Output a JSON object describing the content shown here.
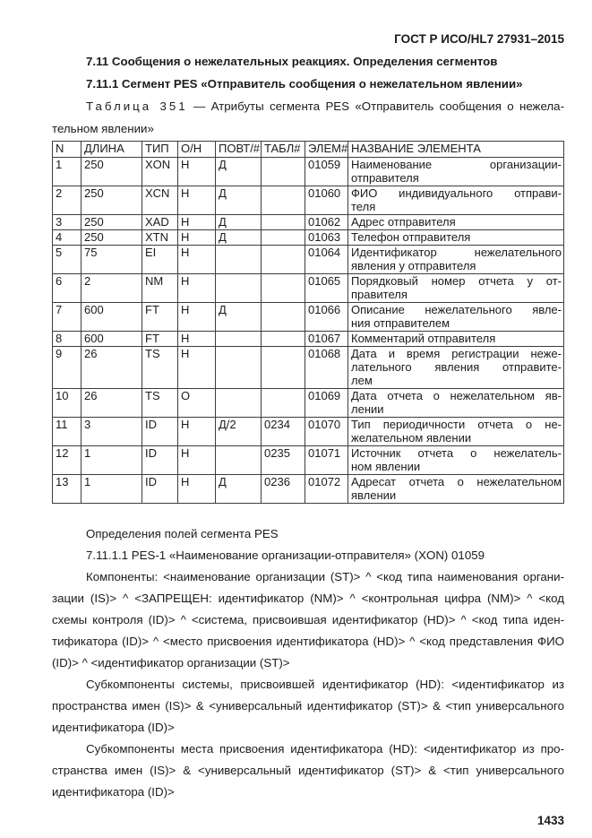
{
  "doc": {
    "header_ref": "ГОСТ Р ИСО/HL7 27931–2015",
    "page_number": "1433"
  },
  "headings": {
    "section": "7.11 Сообщения о нежелательных реакциях. Определения сегментов",
    "subsection": "7.11.1 Сегмент PES «Отправитель сообщения о нежелательном явлении»"
  },
  "table": {
    "caption_label": "Таблица 351",
    "caption_line1_rest": "— Атрибуты сегмента PES «Отправитель сообщения о нежела-",
    "caption_line2": "тельном явлении»",
    "columns": [
      "N",
      "ДЛИНА",
      "ТИП",
      "О/Н",
      "ПОВТ/#",
      "ТАБЛ#",
      "ЭЛЕМ#",
      "НАЗВАНИЕ ЭЛЕМЕНТА"
    ],
    "rows": [
      {
        "n": "1",
        "len": "250",
        "type": "XON",
        "opt": "Н",
        "rep": "Д",
        "tbl": "",
        "elem": "01059",
        "name_lines": [
          "Наименование организации-",
          "отправителя"
        ]
      },
      {
        "n": "2",
        "len": "250",
        "type": "XCN",
        "opt": "Н",
        "rep": "Д",
        "tbl": "",
        "elem": "01060",
        "name_lines": [
          "ФИО индивидуального отправи-",
          "теля"
        ]
      },
      {
        "n": "3",
        "len": "250",
        "type": "XAD",
        "opt": "Н",
        "rep": "Д",
        "tbl": "",
        "elem": "01062",
        "name_lines": [
          "Адрес отправителя"
        ]
      },
      {
        "n": "4",
        "len": "250",
        "type": "XTN",
        "opt": "Н",
        "rep": "Д",
        "tbl": "",
        "elem": "01063",
        "name_lines": [
          "Телефон отправителя"
        ]
      },
      {
        "n": "5",
        "len": "75",
        "type": "EI",
        "opt": "Н",
        "rep": "",
        "tbl": "",
        "elem": "01064",
        "name_lines": [
          "Идентификатор нежелательного",
          "явления у отправителя"
        ]
      },
      {
        "n": "6",
        "len": "2",
        "type": "NM",
        "opt": "Н",
        "rep": "",
        "tbl": "",
        "elem": "01065",
        "name_lines": [
          "Порядковый номер отчета у от-",
          "правителя"
        ]
      },
      {
        "n": "7",
        "len": "600",
        "type": "FT",
        "opt": "Н",
        "rep": "Д",
        "tbl": "",
        "elem": "01066",
        "name_lines": [
          "Описание нежелательного явле-",
          "ния отправителем"
        ]
      },
      {
        "n": "8",
        "len": "600",
        "type": "FT",
        "opt": "Н",
        "rep": "",
        "tbl": "",
        "elem": "01067",
        "name_lines": [
          "Комментарий отправителя"
        ]
      },
      {
        "n": "9",
        "len": "26",
        "type": "TS",
        "opt": "Н",
        "rep": "",
        "tbl": "",
        "elem": "01068",
        "name_lines": [
          "Дата и время регистрации неже-",
          "лательного явления отправите-",
          "лем"
        ]
      },
      {
        "n": "10",
        "len": "26",
        "type": "TS",
        "opt": "О",
        "rep": "",
        "tbl": "",
        "elem": "01069",
        "name_lines": [
          "Дата отчета о нежелательном яв-",
          "лении"
        ]
      },
      {
        "n": "11",
        "len": "3",
        "type": "ID",
        "opt": "Н",
        "rep": "Д/2",
        "tbl": "0234",
        "elem": "01070",
        "name_lines": [
          "Тип периодичности отчета о не-",
          "желательном явлении"
        ]
      },
      {
        "n": "12",
        "len": "1",
        "type": "ID",
        "opt": "Н",
        "rep": "",
        "tbl": "0235",
        "elem": "01071",
        "name_lines": [
          "Источник отчета о нежелатель-",
          "ном явлении"
        ]
      },
      {
        "n": "13",
        "len": "1",
        "type": "ID",
        "opt": "Н",
        "rep": "Д",
        "tbl": "0236",
        "elem": "01072",
        "name_lines": [
          "Адресат отчета о нежелательном",
          "явлении"
        ]
      }
    ]
  },
  "body": {
    "definitions_intro": "Определения полей сегмента PES",
    "field_heading": "7.11.1.1 PES-1 «Наименование организации-отправителя» (XON) 01059",
    "components": "Компоненты: <наименование организации (ST)> ^ <код типа наименования органи­зации (IS)> ^ <ЗАПРЕЩЕН: идентификатор (NM)> ^ <контрольная цифра (NM)> ^ <код схемы контроля (ID)> ^ <система, присвоившая идентификатор (HD)> ^ <код типа иден­тификатора (ID)> ^ <место присвоения идентификатора (HD)> ^ <код представления ФИО (ID)> ^ <идентификатор организации (ST)>",
    "subcomponents_system": "Субкомпоненты системы, присвоившей идентификатор (HD): <идентификатор из пространства имен (IS)> & <универсальный идентификатор (ST)> & <тип универсального идентификатора (ID)>",
    "subcomponents_place": "Субкомпоненты места присвоения идентификатора (HD): <идентификатор из про­странства имен (IS)> & <универсальный идентификатор (ST)> & <тип универсального идентификатора (ID)>"
  }
}
